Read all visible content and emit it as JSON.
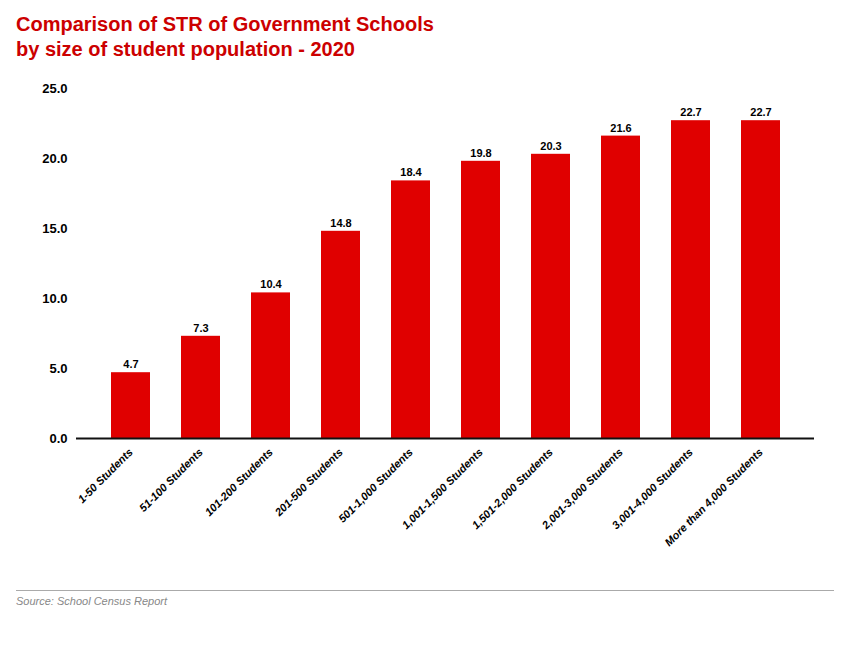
{
  "chart_data": {
    "type": "bar",
    "title": "Comparison of STR of Government Schools",
    "subtitle": "by size of student population - 2020",
    "caption": "Source: School Census Report",
    "categories": [
      "1-50 Students",
      "51-100 Students",
      "101-200 Students",
      "201-500 Students",
      "501-1,000 Students",
      "1,001-1,500 Students",
      "1,501-2,000 Students",
      "2,001-3,000 Students",
      "3,001-4,000 Students",
      "More than 4,000 Students"
    ],
    "values": [
      4.7,
      7.3,
      10.4,
      14.8,
      18.4,
      19.8,
      20.3,
      21.6,
      22.7,
      22.7
    ],
    "color": "#e00000",
    "ylim": [
      0,
      25.0
    ],
    "yticks": [
      {
        "value": 0.0,
        "label": "0.0"
      },
      {
        "value": 5.0,
        "label": "5.0"
      },
      {
        "value": 10.0,
        "label": "10.0"
      },
      {
        "value": 15.0,
        "label": "15.0"
      },
      {
        "value": 20.0,
        "label": "20.0"
      },
      {
        "value": 25.0,
        "label": "25.0"
      }
    ],
    "grid": false,
    "data_labels": true
  }
}
